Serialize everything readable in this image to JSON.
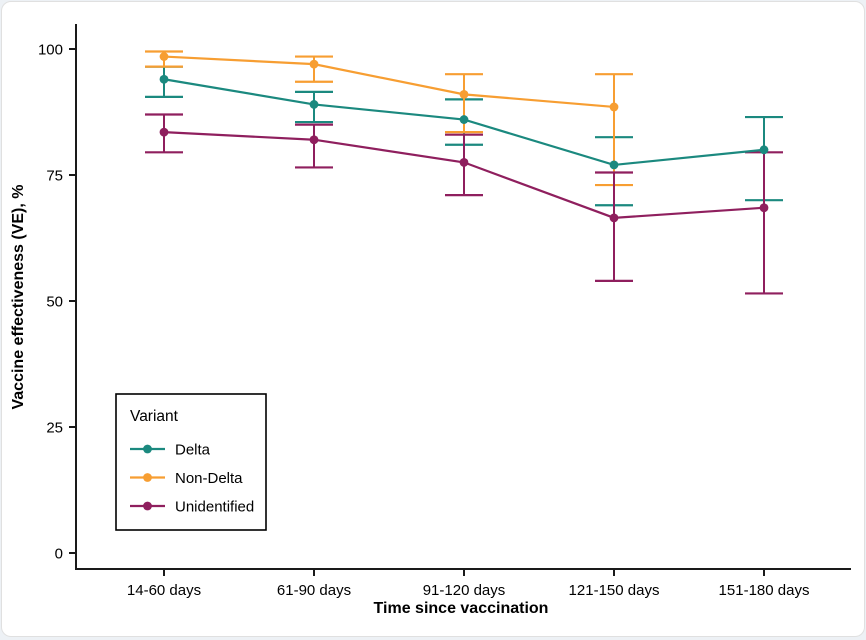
{
  "chart_data": {
    "type": "line",
    "title": "",
    "xlabel": "Time since vaccination",
    "ylabel": "Vaccine effectiveness (VE), %",
    "categories": [
      "14-60 days",
      "61-90 days",
      "91-120 days",
      "121-150 days",
      "151-180 days"
    ],
    "yticks": [
      0,
      25,
      50,
      75,
      100
    ],
    "ylim": [
      0,
      100
    ],
    "grid": false,
    "legend": {
      "title": "Variant",
      "position": "inside-bottom-left",
      "entries": [
        "Delta",
        "Non-Delta",
        "Unidentified"
      ]
    },
    "series": [
      {
        "name": "Delta",
        "color": "#1b897f",
        "values": [
          94,
          89,
          86,
          77,
          80
        ],
        "ci_low": [
          90.5,
          85.5,
          81,
          69,
          70
        ],
        "ci_high": [
          96.5,
          91.5,
          90,
          82.5,
          86.5
        ]
      },
      {
        "name": "Non-Delta",
        "color": "#f79e32",
        "values": [
          98.5,
          97,
          91,
          88.5,
          null
        ],
        "ci_low": [
          96.5,
          93.5,
          83.5,
          73,
          null
        ],
        "ci_high": [
          99.5,
          98.5,
          95,
          95,
          null
        ]
      },
      {
        "name": "Unidentified",
        "color": "#8f1f5e",
        "values": [
          83.5,
          82,
          77.5,
          66.5,
          68.5
        ],
        "ci_low": [
          79.5,
          76.5,
          71,
          54,
          51.5
        ],
        "ci_high": [
          87,
          85,
          83,
          75.5,
          79.5
        ]
      }
    ],
    "colors": {
      "axis": "#1a1a1a",
      "text": "#000000",
      "panel_background": "#ffffff"
    }
  }
}
